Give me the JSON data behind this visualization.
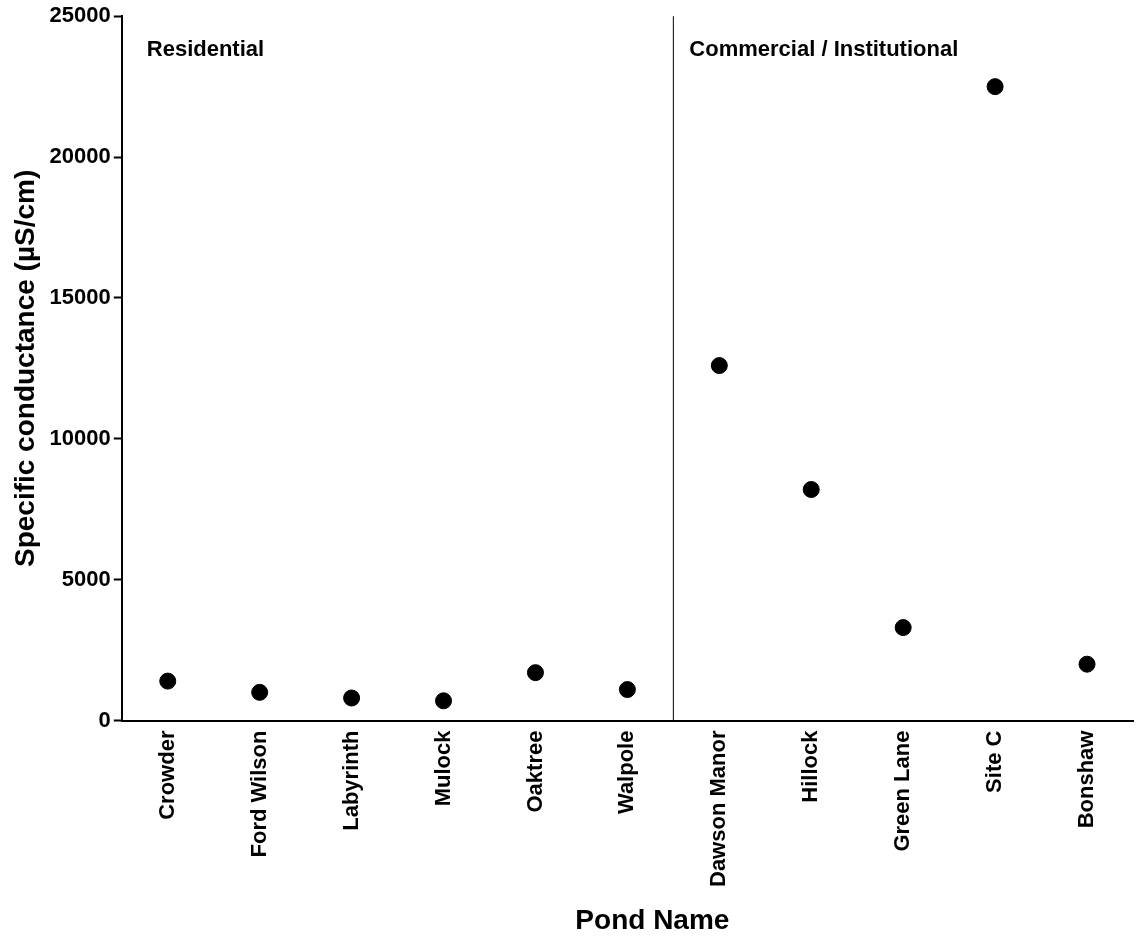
{
  "chart_data": {
    "type": "scatter",
    "xlabel": "Pond Name",
    "ylabel": "Specific conductance (µS/cm)",
    "categories": [
      "Crowder",
      "Ford Wilson",
      "Labyrinth",
      "Mulock",
      "Oaktree",
      "Walpole",
      "Dawson Manor",
      "Hillock",
      "Green Lane",
      "Site C",
      "Bonshaw"
    ],
    "series": [
      {
        "color": "#000000",
        "values": [
          1400,
          1000,
          800,
          700,
          1700,
          1100,
          12600,
          8200,
          3300,
          22500,
          2000
        ]
      }
    ],
    "ylim": [
      0,
      25000
    ],
    "yticks": [
      0,
      5000,
      10000,
      15000,
      20000,
      25000
    ],
    "annotations": [
      "Residential",
      "Commercial / Institutional"
    ],
    "grid": false,
    "legend": false,
    "marker": "circle"
  }
}
